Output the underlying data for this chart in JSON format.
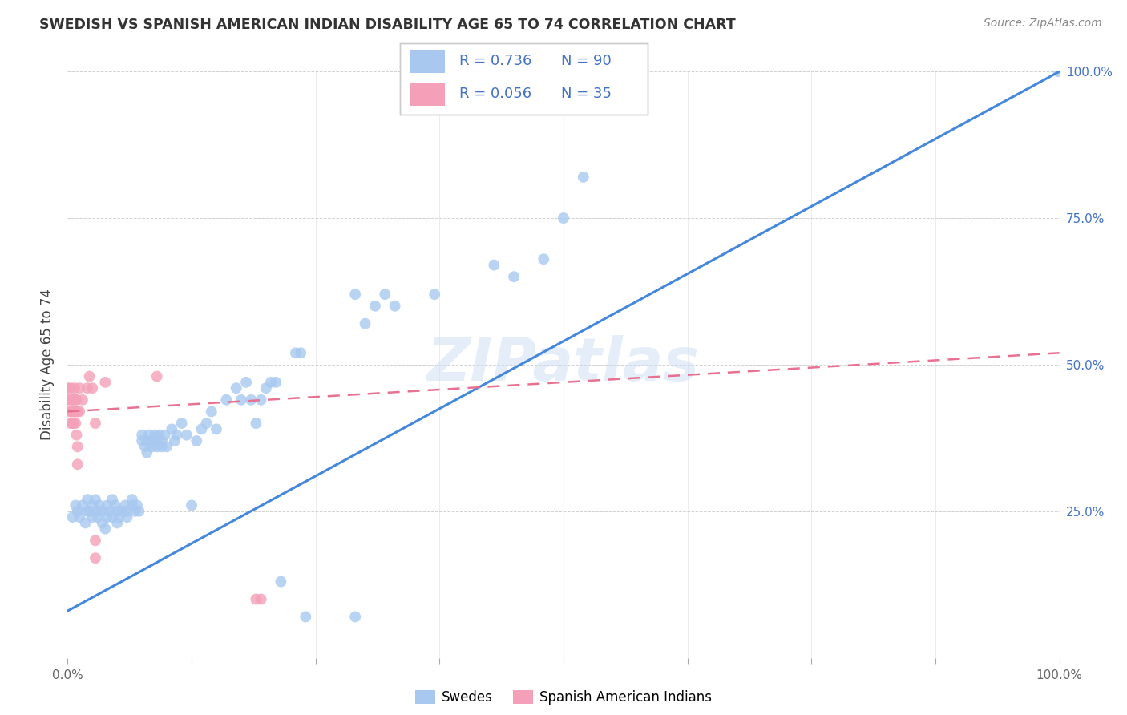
{
  "title": "SWEDISH VS SPANISH AMERICAN INDIAN DISABILITY AGE 65 TO 74 CORRELATION CHART",
  "source": "Source: ZipAtlas.com",
  "ylabel": "Disability Age 65 to 74",
  "xlim": [
    0.0,
    1.0
  ],
  "ylim": [
    0.0,
    1.0
  ],
  "xticks": [
    0.0,
    0.125,
    0.25,
    0.375,
    0.5,
    0.625,
    0.75,
    0.875,
    1.0
  ],
  "xticklabels": [
    "0.0%",
    "",
    "",
    "",
    "",
    "",
    "",
    "",
    "100.0%"
  ],
  "yticks": [
    0.25,
    0.5,
    0.75,
    1.0
  ],
  "yticklabels": [
    "25.0%",
    "50.0%",
    "75.0%",
    "100.0%"
  ],
  "watermark": "ZIPatlas",
  "legend_r1": "R = 0.736",
  "legend_n1": "N = 90",
  "legend_r2": "R = 0.056",
  "legend_n2": "N = 35",
  "blue_color": "#A8C8F0",
  "pink_color": "#F4A0B8",
  "line_blue": "#4488DD",
  "line_pink": "#E87090",
  "blue_scatter": [
    [
      0.005,
      0.24
    ],
    [
      0.008,
      0.26
    ],
    [
      0.01,
      0.25
    ],
    [
      0.012,
      0.24
    ],
    [
      0.015,
      0.26
    ],
    [
      0.018,
      0.23
    ],
    [
      0.02,
      0.25
    ],
    [
      0.02,
      0.27
    ],
    [
      0.022,
      0.25
    ],
    [
      0.025,
      0.24
    ],
    [
      0.025,
      0.26
    ],
    [
      0.028,
      0.27
    ],
    [
      0.03,
      0.25
    ],
    [
      0.03,
      0.24
    ],
    [
      0.032,
      0.26
    ],
    [
      0.035,
      0.23
    ],
    [
      0.035,
      0.25
    ],
    [
      0.038,
      0.22
    ],
    [
      0.04,
      0.24
    ],
    [
      0.04,
      0.26
    ],
    [
      0.042,
      0.25
    ],
    [
      0.045,
      0.27
    ],
    [
      0.045,
      0.24
    ],
    [
      0.048,
      0.26
    ],
    [
      0.05,
      0.23
    ],
    [
      0.05,
      0.25
    ],
    [
      0.052,
      0.24
    ],
    [
      0.055,
      0.25
    ],
    [
      0.058,
      0.26
    ],
    [
      0.06,
      0.25
    ],
    [
      0.06,
      0.24
    ],
    [
      0.065,
      0.27
    ],
    [
      0.065,
      0.26
    ],
    [
      0.068,
      0.25
    ],
    [
      0.07,
      0.26
    ],
    [
      0.072,
      0.25
    ],
    [
      0.075,
      0.37
    ],
    [
      0.075,
      0.38
    ],
    [
      0.078,
      0.36
    ],
    [
      0.08,
      0.37
    ],
    [
      0.08,
      0.35
    ],
    [
      0.082,
      0.38
    ],
    [
      0.085,
      0.36
    ],
    [
      0.085,
      0.37
    ],
    [
      0.088,
      0.38
    ],
    [
      0.09,
      0.37
    ],
    [
      0.09,
      0.36
    ],
    [
      0.092,
      0.38
    ],
    [
      0.095,
      0.36
    ],
    [
      0.095,
      0.37
    ],
    [
      0.098,
      0.38
    ],
    [
      0.1,
      0.36
    ],
    [
      0.105,
      0.39
    ],
    [
      0.108,
      0.37
    ],
    [
      0.11,
      0.38
    ],
    [
      0.115,
      0.4
    ],
    [
      0.12,
      0.38
    ],
    [
      0.125,
      0.26
    ],
    [
      0.13,
      0.37
    ],
    [
      0.135,
      0.39
    ],
    [
      0.14,
      0.4
    ],
    [
      0.145,
      0.42
    ],
    [
      0.15,
      0.39
    ],
    [
      0.16,
      0.44
    ],
    [
      0.17,
      0.46
    ],
    [
      0.175,
      0.44
    ],
    [
      0.18,
      0.47
    ],
    [
      0.185,
      0.44
    ],
    [
      0.19,
      0.4
    ],
    [
      0.195,
      0.44
    ],
    [
      0.2,
      0.46
    ],
    [
      0.205,
      0.47
    ],
    [
      0.21,
      0.47
    ],
    [
      0.215,
      0.13
    ],
    [
      0.23,
      0.52
    ],
    [
      0.235,
      0.52
    ],
    [
      0.24,
      0.07
    ],
    [
      0.29,
      0.62
    ],
    [
      0.29,
      0.07
    ],
    [
      0.3,
      0.57
    ],
    [
      0.31,
      0.6
    ],
    [
      0.32,
      0.62
    ],
    [
      0.33,
      0.6
    ],
    [
      0.37,
      0.62
    ],
    [
      0.43,
      0.67
    ],
    [
      0.45,
      0.65
    ],
    [
      0.48,
      0.68
    ],
    [
      0.5,
      0.75
    ],
    [
      0.52,
      0.82
    ],
    [
      0.999,
      1.0
    ]
  ],
  "pink_scatter": [
    [
      0.0,
      0.46
    ],
    [
      0.0,
      0.44
    ],
    [
      0.002,
      0.42
    ],
    [
      0.003,
      0.4
    ],
    [
      0.003,
      0.46
    ],
    [
      0.003,
      0.44
    ],
    [
      0.004,
      0.42
    ],
    [
      0.005,
      0.4
    ],
    [
      0.005,
      0.44
    ],
    [
      0.005,
      0.42
    ],
    [
      0.006,
      0.4
    ],
    [
      0.006,
      0.44
    ],
    [
      0.007,
      0.46
    ],
    [
      0.007,
      0.42
    ],
    [
      0.008,
      0.44
    ],
    [
      0.008,
      0.42
    ],
    [
      0.008,
      0.4
    ],
    [
      0.009,
      0.38
    ],
    [
      0.009,
      0.44
    ],
    [
      0.01,
      0.42
    ],
    [
      0.01,
      0.36
    ],
    [
      0.01,
      0.33
    ],
    [
      0.012,
      0.46
    ],
    [
      0.012,
      0.42
    ],
    [
      0.015,
      0.44
    ],
    [
      0.02,
      0.46
    ],
    [
      0.022,
      0.48
    ],
    [
      0.025,
      0.46
    ],
    [
      0.028,
      0.4
    ],
    [
      0.028,
      0.2
    ],
    [
      0.028,
      0.17
    ],
    [
      0.038,
      0.47
    ],
    [
      0.09,
      0.48
    ],
    [
      0.19,
      0.1
    ],
    [
      0.195,
      0.1
    ]
  ],
  "blue_line_x": [
    0.0,
    1.0
  ],
  "blue_line_y": [
    0.08,
    1.0
  ],
  "pink_line_x": [
    0.0,
    1.0
  ],
  "pink_line_y": [
    0.42,
    0.52
  ]
}
